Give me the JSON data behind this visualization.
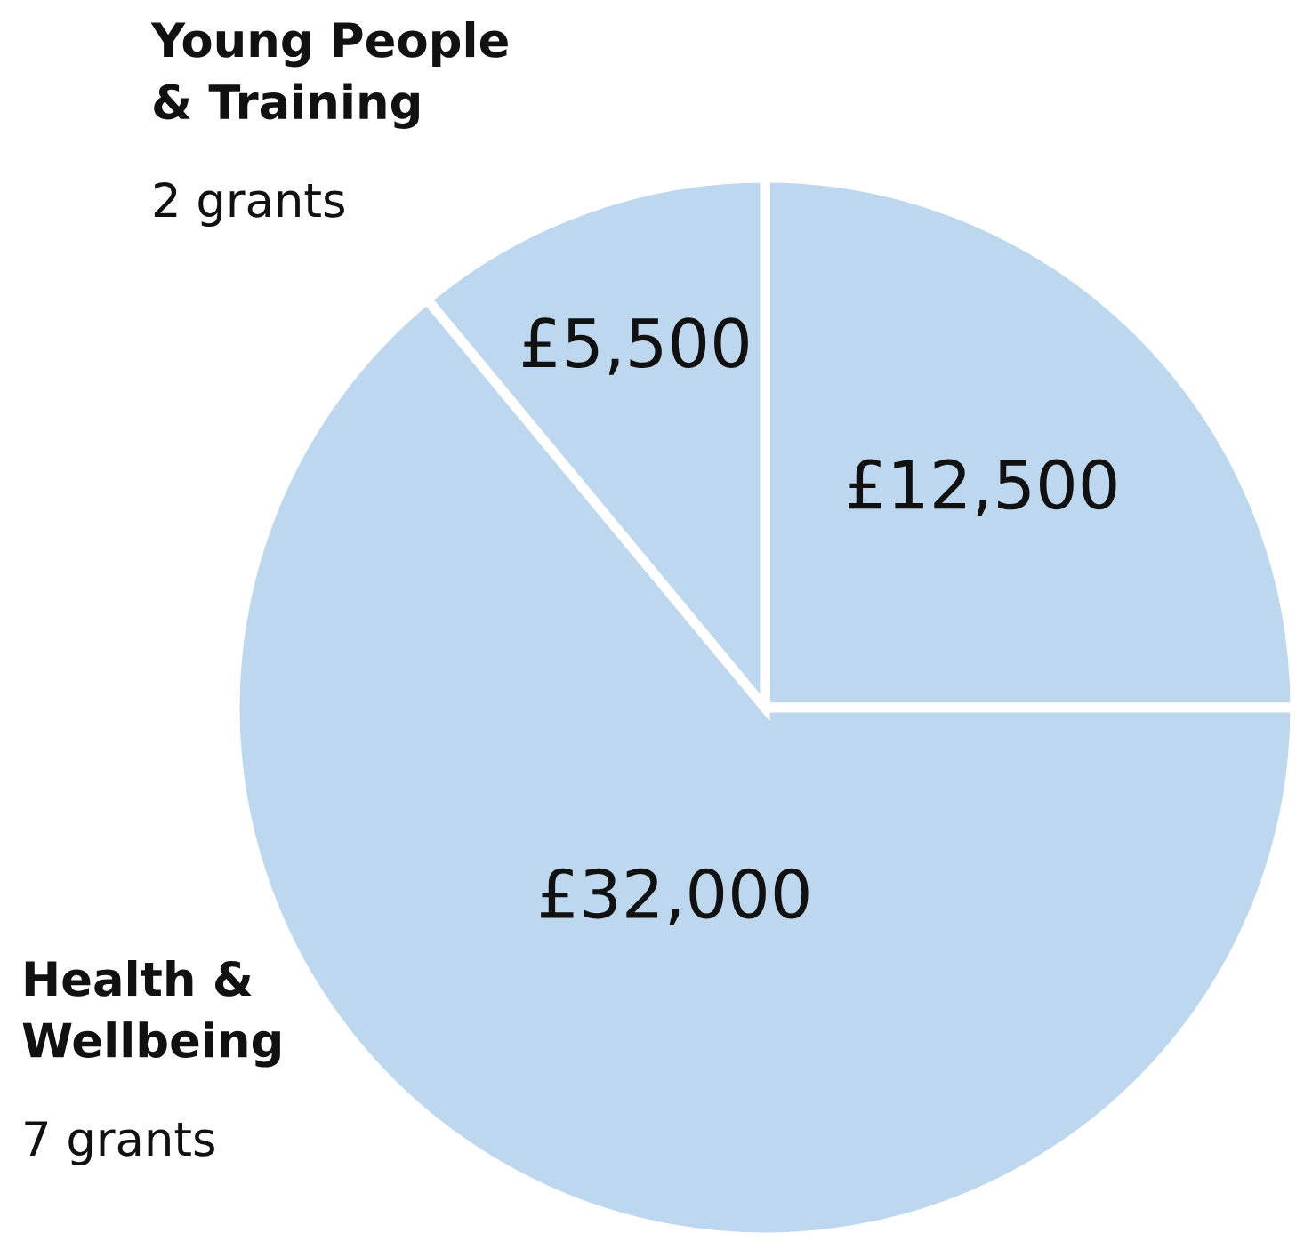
{
  "chart_data": {
    "type": "pie",
    "categories": [
      null,
      "Health &\nWellbeing",
      "Young People\n& Training"
    ],
    "values": [
      12500,
      32000,
      5500
    ],
    "value_labels": [
      "£12,500",
      "£32,000",
      "£5,500"
    ],
    "colors": [
      "#bdd7ee",
      "#bdd7ee",
      "#bdd7ee"
    ],
    "annotations": [
      "7 grants",
      "2 grants"
    ]
  }
}
